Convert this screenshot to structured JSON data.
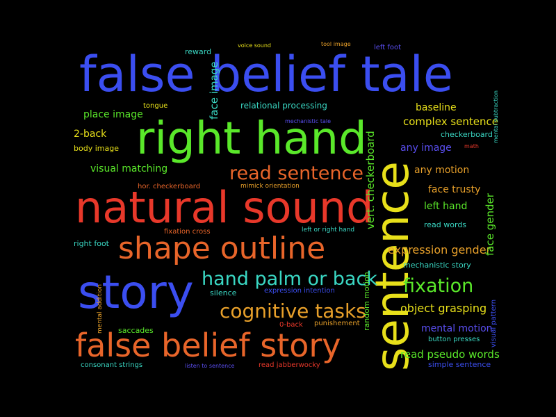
{
  "words": [
    {
      "text": "false belief tale",
      "color": "#3b4ef0"
    },
    {
      "text": "sentence",
      "color": "#e8e01a"
    },
    {
      "text": "right hand",
      "color": "#5ae82a"
    },
    {
      "text": "natural sound",
      "color": "#e8382a"
    },
    {
      "text": "shape outline",
      "color": "#e8652a"
    },
    {
      "text": "story",
      "color": "#3b4ef0"
    },
    {
      "text": "false belief story",
      "color": "#e8652a"
    },
    {
      "text": "read sentence",
      "color": "#e8652a"
    },
    {
      "text": "hand palm or back",
      "color": "#3ad8c4"
    },
    {
      "text": "cognitive tasks",
      "color": "#e8a02a"
    },
    {
      "text": "fixation",
      "color": "#5ae82a"
    },
    {
      "text": "expression gender",
      "color": "#e8a02a"
    },
    {
      "text": "object grasping",
      "color": "#e8e01a"
    },
    {
      "text": "read pseudo words",
      "color": "#5ae82a"
    },
    {
      "text": "complex sentence",
      "color": "#e8e01a"
    },
    {
      "text": "baseline",
      "color": "#e8e01a"
    },
    {
      "text": "any motion",
      "color": "#e8a02a"
    },
    {
      "text": "face trusty",
      "color": "#e8a02a"
    },
    {
      "text": "left hand",
      "color": "#5ae82a"
    },
    {
      "text": "any image",
      "color": "#5a4ef0"
    },
    {
      "text": "mental motion",
      "color": "#5a4ef0"
    },
    {
      "text": "place image",
      "color": "#5ae82a"
    },
    {
      "text": "2-back",
      "color": "#e8e01a"
    },
    {
      "text": "visual matching",
      "color": "#5ae82a"
    },
    {
      "text": "relational processing",
      "color": "#3ad8c4"
    },
    {
      "text": "reward",
      "color": "#3ad8c4"
    },
    {
      "text": "right foot",
      "color": "#3ad8c4"
    },
    {
      "text": "tongue",
      "color": "#e8e01a"
    },
    {
      "text": "body image",
      "color": "#e8e01a"
    },
    {
      "text": "hor. checkerboard",
      "color": "#e8652a"
    },
    {
      "text": "mimick orientation",
      "color": "#e8a02a"
    },
    {
      "text": "fixation cross",
      "color": "#e8652a"
    },
    {
      "text": "left or right hand",
      "color": "#3ad8c4"
    },
    {
      "text": "silence",
      "color": "#3ad8c4"
    },
    {
      "text": "expression intention",
      "color": "#3b4ef0"
    },
    {
      "text": "mechanistic story",
      "color": "#3ad8c4"
    },
    {
      "text": "saccades",
      "color": "#5ae82a"
    },
    {
      "text": "0-back",
      "color": "#e8382a"
    },
    {
      "text": "punishement",
      "color": "#e8a02a"
    },
    {
      "text": "button presses",
      "color": "#3ad8c4"
    },
    {
      "text": "consonant strings",
      "color": "#3ad8c4"
    },
    {
      "text": "listen to sentence",
      "color": "#5a4ef0"
    },
    {
      "text": "read jabberwocky",
      "color": "#e8382a"
    },
    {
      "text": "simple sentence",
      "color": "#3b4ef0"
    },
    {
      "text": "voice sound",
      "color": "#e8e01a"
    },
    {
      "text": "tool image",
      "color": "#e8a02a"
    },
    {
      "text": "left foot",
      "color": "#5a4ef0"
    },
    {
      "text": "mechanistic tale",
      "color": "#5a4ef0"
    },
    {
      "text": "checkerboard",
      "color": "#3ad8c4"
    },
    {
      "text": "math",
      "color": "#e8382a"
    },
    {
      "text": "read words",
      "color": "#3ad8c4"
    },
    {
      "text": "face image",
      "color": "#3ad8c4"
    },
    {
      "text": "vert. checkerboard",
      "color": "#5ae82a"
    },
    {
      "text": "face gender",
      "color": "#5ae82a"
    },
    {
      "text": "random motion",
      "color": "#5ae82a"
    },
    {
      "text": "mental addition",
      "color": "#e8a02a"
    },
    {
      "text": "visual pattern",
      "color": "#3b4ef0"
    },
    {
      "text": "mental subtraction",
      "color": "#3ad8c4"
    }
  ]
}
